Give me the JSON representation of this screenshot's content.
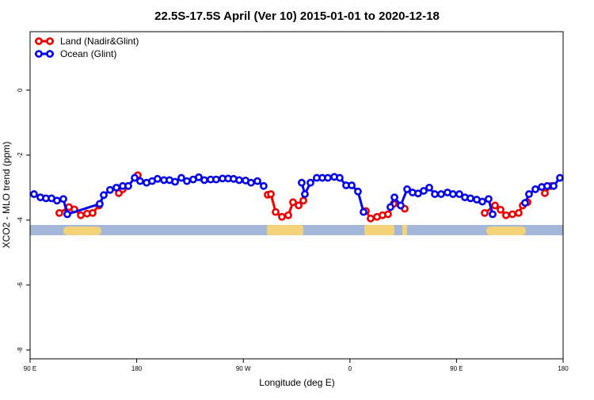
{
  "chart_data": {
    "type": "line",
    "title": "22.5S-17.5S April (Ver 10)   2015-01-01 to 2020-12-18",
    "x_label": "Longitude (deg E)",
    "y_label": "XCO2 - MLO trend (ppm)",
    "xlim": [
      90,
      540
    ],
    "ylim": [
      -8.27,
      1.8
    ],
    "xticks": [
      {
        "value": 90,
        "label": "90 E"
      },
      180,
      {
        "value": 270,
        "label": "90 W"
      },
      {
        "value": 360,
        "label": "0"
      },
      {
        "value": 450,
        "label": "90 E"
      },
      {
        "value": 540,
        "label": "180"
      }
    ],
    "yticks": [
      0,
      -2,
      -4,
      -6,
      -8
    ],
    "legend": "top-left",
    "series": [
      {
        "name": "Land (Nadir&Glint)",
        "color": "#ee0000",
        "x": [
          114.7,
          122.8,
          127.4,
          132.8,
          138.1,
          142.8,
          148.2,
          null,
          164.9,
          168.2,
          null,
          180.9,
          null,
          290.6,
          293.3,
          297.3,
          302.6,
          308,
          312,
          316.7,
          320.7,
          null,
          373.5,
          377.5,
          382.9,
          387.5,
          392.2,
          396.9,
          406.3,
          null,
          473.8,
          482.5,
          487.2,
          491.8,
          497.2,
          502.5,
          505.9,
          509.9,
          null,
          524.6,
          530
        ],
        "values": [
          -3.78,
          -3.6,
          -3.67,
          -3.85,
          -3.8,
          -3.78,
          -3.55,
          null,
          -3.17,
          -3.05,
          null,
          -2.62,
          null,
          -3.22,
          -3.2,
          -3.75,
          -3.9,
          -3.85,
          -3.45,
          -3.55,
          -3.4,
          null,
          -3.72,
          -3.95,
          -3.9,
          -3.85,
          -3.82,
          -3.5,
          -3.65,
          null,
          -3.78,
          -3.55,
          -3.68,
          -3.85,
          -3.82,
          -3.78,
          -3.55,
          -3.45,
          null,
          -3.17,
          -2.95
        ]
      },
      {
        "name": "Ocean (Glint)",
        "color": "#0000ee",
        "x": [
          93.3,
          98.7,
          103.4,
          108.1,
          112.7,
          118.1,
          121.4,
          148.8,
          152.2,
          157.5,
          162.9,
          168.2,
          172.9,
          178.3,
          182.9,
          188.3,
          193,
          197.6,
          203,
          207.7,
          212.4,
          217.7,
          222.4,
          227.7,
          232.4,
          237.1,
          242.4,
          247.1,
          252.5,
          257.2,
          261.8,
          266.5,
          271.9,
          276.5,
          281.9,
          287.2,
          null,
          319.3,
          322,
          326.7,
          332,
          336.7,
          341.4,
          346.8,
          351.4,
          356.8,
          361.5,
          366.8,
          371.5,
          null,
          394.2,
          397.6,
          402.9,
          408.3,
          412.9,
          417.6,
          422.3,
          427,
          431.7,
          437,
          442.4,
          447,
          452.4,
          457.1,
          461.8,
          467.1,
          471.8,
          477.1,
          480.5,
          null,
          507.9,
          511.2,
          516.6,
          521.9,
          526.6,
          532,
          537.3
        ],
        "values": [
          -3.2,
          -3.3,
          -3.33,
          -3.33,
          -3.4,
          -3.35,
          -3.82,
          -3.5,
          -3.23,
          -3.07,
          -3.0,
          -2.95,
          -2.95,
          -2.7,
          -2.8,
          -2.85,
          -2.8,
          -2.73,
          -2.77,
          -2.77,
          -2.82,
          -2.7,
          -2.8,
          -2.75,
          -2.68,
          -2.77,
          -2.75,
          -2.75,
          -2.72,
          -2.72,
          -2.73,
          -2.77,
          -2.78,
          -2.85,
          -2.8,
          -2.95,
          null,
          -2.85,
          -3.2,
          -2.85,
          -2.7,
          -2.7,
          -2.7,
          -2.67,
          -2.7,
          -2.93,
          -2.93,
          -3.12,
          -3.75,
          null,
          -3.6,
          -3.3,
          -3.55,
          -3.05,
          -3.15,
          -3.18,
          -3.1,
          -3.0,
          -3.2,
          -3.2,
          -3.15,
          -3.2,
          -3.2,
          -3.3,
          -3.33,
          -3.37,
          -3.43,
          -3.35,
          -3.82,
          null,
          -3.47,
          -3.2,
          -3.05,
          -2.98,
          -2.95,
          -2.95,
          -2.7
        ]
      }
    ]
  }
}
